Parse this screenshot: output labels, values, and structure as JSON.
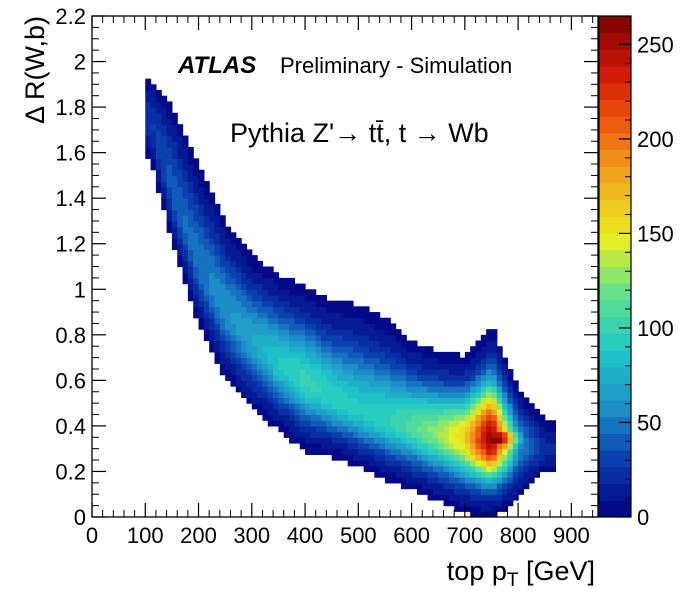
{
  "chart_data": {
    "type": "heatmap",
    "experiment": "ATLAS",
    "status": "Preliminary - Simulation",
    "process": "Pythia Z'→ tt̄, t → Wb",
    "xlabel": "top p",
    "xlabel_sub": "T",
    "xlabel_unit": " [GeV]",
    "ylabel": "Δ R(W,b)",
    "xlim": [
      0,
      950
    ],
    "ylim": [
      0,
      2.2
    ],
    "xticks": [
      0,
      100,
      200,
      300,
      400,
      500,
      600,
      700,
      800,
      900
    ],
    "xtick_labels": [
      "0",
      "100",
      "200",
      "300",
      "400",
      "500",
      "600",
      "700",
      "800",
      "900"
    ],
    "yticks": [
      0,
      0.2,
      0.4,
      0.6,
      0.8,
      1.0,
      1.2,
      1.4,
      1.6,
      1.8,
      2.0,
      2.2
    ],
    "ytick_labels": [
      "0",
      "0.2",
      "0.4",
      "0.6",
      "0.8",
      "1",
      "1.2",
      "1.4",
      "1.6",
      "1.8",
      "2",
      "2.2"
    ],
    "zlim": [
      0,
      265
    ],
    "zticks": [
      0,
      50,
      100,
      150,
      200,
      250
    ],
    "ztick_labels": [
      "0",
      "50",
      "100",
      "150",
      "200",
      "250"
    ],
    "colormap_stops": [
      "#000080",
      "#0a3dae",
      "#1e90c8",
      "#20c8c8",
      "#60e090",
      "#e8f020",
      "#f0b020",
      "#f06010",
      "#d01808",
      "#7a0000"
    ],
    "colorbar_levels": 30,
    "ridge": {
      "x": [
        110,
        150,
        200,
        250,
        300,
        350,
        400,
        450,
        500,
        550,
        600,
        650,
        700,
        750,
        800,
        850
      ],
      "y_center": [
        1.75,
        1.45,
        1.12,
        0.92,
        0.78,
        0.68,
        0.6,
        0.53,
        0.47,
        0.43,
        0.4,
        0.37,
        0.35,
        0.34,
        0.33,
        0.3
      ],
      "y_low": [
        1.55,
        1.2,
        0.85,
        0.62,
        0.5,
        0.42,
        0.33,
        0.3,
        0.25,
        0.2,
        0.16,
        0.12,
        0.08,
        0.08,
        0.1,
        0.18
      ],
      "y_high": [
        1.95,
        1.82,
        1.55,
        1.28,
        1.12,
        1.02,
        0.96,
        0.9,
        0.88,
        0.82,
        0.72,
        0.67,
        0.64,
        0.72,
        0.55,
        0.45
      ],
      "peak_z": [
        25,
        40,
        50,
        60,
        70,
        90,
        100,
        95,
        90,
        95,
        110,
        130,
        160,
        265,
        60,
        20
      ]
    },
    "peak": {
      "x": 760,
      "y": 0.345,
      "z": 265
    }
  }
}
